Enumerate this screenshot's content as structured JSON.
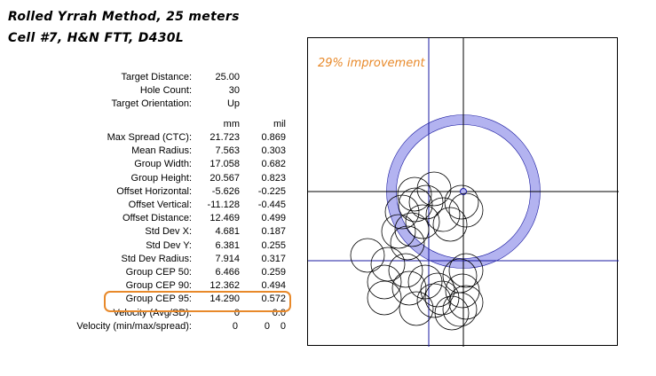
{
  "title_line1": "Rolled Yrrah Method, 25 meters",
  "title_line2": "Cell #7, H&N FTT, D430L",
  "improvement_note": "29% improvement",
  "accent_color": "#e8892a",
  "ring_color": "#b3b3f0",
  "crosshair_color": "#1a1aa0",
  "info": [
    {
      "label": "Target Distance:",
      "value": "25.00"
    },
    {
      "label": "Hole Count:",
      "value": "30"
    },
    {
      "label": "Target Orientation:",
      "value": "Up"
    }
  ],
  "units": {
    "mm": "mm",
    "mil": "mil"
  },
  "stats": [
    {
      "label": "Max Spread (CTC):",
      "mm": "21.723",
      "mil": "0.869"
    },
    {
      "label": "Mean Radius:",
      "mm": "7.563",
      "mil": "0.303"
    },
    {
      "label": "Group Width:",
      "mm": "17.058",
      "mil": "0.682"
    },
    {
      "label": "Group Height:",
      "mm": "20.567",
      "mil": "0.823"
    },
    {
      "label": "Offset Horizontal:",
      "mm": "-5.626",
      "mil": "-0.225"
    },
    {
      "label": "Offset Vertical:",
      "mm": "-11.128",
      "mil": "-0.445"
    },
    {
      "label": "Offset Distance:",
      "mm": "12.469",
      "mil": "0.499"
    },
    {
      "label": "Std Dev X:",
      "mm": "4.681",
      "mil": "0.187"
    },
    {
      "label": "Std Dev Y:",
      "mm": "6.381",
      "mil": "0.255"
    },
    {
      "label": "Std Dev Radius:",
      "mm": "7.914",
      "mil": "0.317"
    },
    {
      "label": "Group CEP 50:",
      "mm": "6.466",
      "mil": "0.259"
    },
    {
      "label": "Group CEP 90:",
      "mm": "12.362",
      "mil": "0.494"
    },
    {
      "label": "Group CEP 95:",
      "mm": "14.290",
      "mil": "0.572"
    },
    {
      "label": "Velocity (Avg/SD):",
      "mm": "0",
      "mil": "0.0"
    }
  ],
  "velocity_minmax": {
    "label": "Velocity (min/max/spread):",
    "min": "0",
    "max": "0",
    "spread": "0"
  }
}
